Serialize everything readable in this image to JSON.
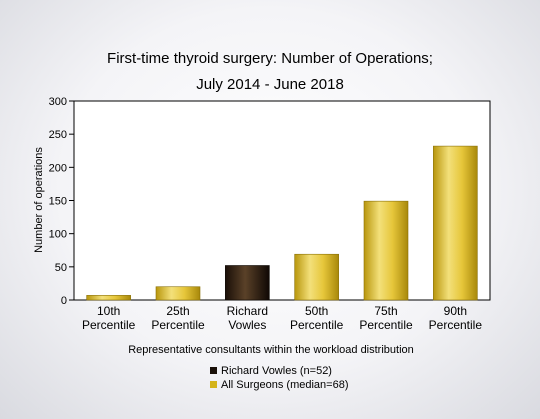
{
  "chart_data": {
    "type": "bar",
    "title_line1": "First-time thyroid surgery: Number of Operations;",
    "title_line2": "July 2014 - June 2018",
    "xlabel": "Representative consultants within the workload distribution",
    "ylabel": "Number of operations",
    "ylim": [
      0,
      300
    ],
    "yticks": [
      "0",
      "50",
      "100",
      "150",
      "200",
      "250",
      "300"
    ],
    "categories": [
      [
        "10th",
        "Percentile"
      ],
      [
        "25th",
        "Percentile"
      ],
      [
        "Richard",
        "Vowles"
      ],
      [
        "50th",
        "Percentile"
      ],
      [
        "75th",
        "Percentile"
      ],
      [
        "90th",
        "Percentile"
      ]
    ],
    "values": [
      7,
      20,
      52,
      69,
      149,
      232
    ],
    "highlight_index": 2,
    "grid": false,
    "colors": {
      "surgeon": "#d4b41a",
      "highlight": "#2a1a10"
    },
    "legend": [
      {
        "label": "Richard Vowles (n=52)",
        "color": "#1a1008"
      },
      {
        "label": "All Surgeons (median=68)",
        "color": "#d4b41a"
      }
    ]
  }
}
